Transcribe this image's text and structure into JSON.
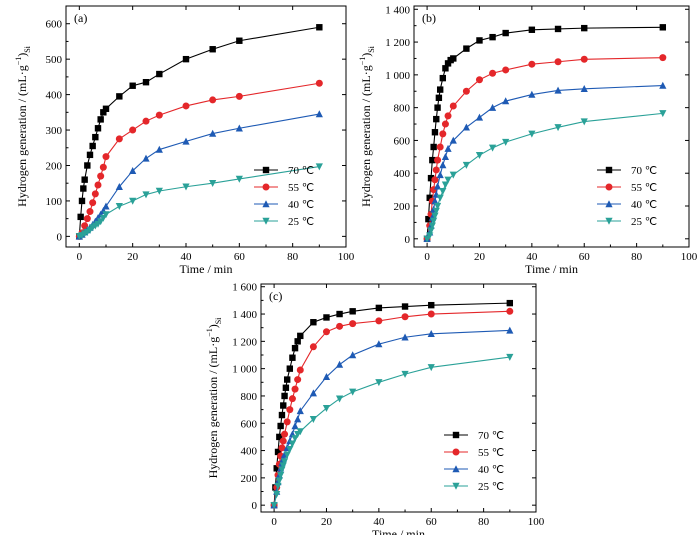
{
  "chart_data": [
    {
      "type": "line",
      "panel_label": "(a)",
      "xlabel": "Time / min",
      "ylabel_main": "Hydrogen generation / (mL·g",
      "ylabel_sup": "−1",
      "ylabel_close": ")",
      "ylabel_sub": "Si",
      "xlim": [
        -5,
        100
      ],
      "ylim": [
        -30,
        650
      ],
      "xticks": [
        0,
        20,
        40,
        60,
        80,
        100
      ],
      "yticks": [
        0,
        100,
        200,
        300,
        400,
        500,
        600
      ],
      "ytick_labels": [
        "0",
        "100",
        "200",
        "300",
        "400",
        "500",
        "600"
      ],
      "legend_position": "lower-right",
      "series": [
        {
          "name": "70 ℃",
          "color": "#000000",
          "marker": "square",
          "x": [
            0,
            0.5,
            1,
            1.5,
            2,
            3,
            4,
            5,
            6,
            7,
            8,
            9,
            10,
            15,
            20,
            25,
            30,
            40,
            50,
            60,
            90
          ],
          "y": [
            0,
            55,
            100,
            135,
            160,
            200,
            230,
            255,
            280,
            305,
            330,
            350,
            360,
            395,
            425,
            435,
            458,
            500,
            528,
            552,
            590
          ]
        },
        {
          "name": "55 ℃",
          "color": "#e4272a",
          "marker": "circle",
          "x": [
            0,
            1,
            2,
            3,
            4,
            5,
            6,
            7,
            8,
            9,
            10,
            15,
            20,
            25,
            30,
            40,
            50,
            60,
            90
          ],
          "y": [
            0,
            10,
            30,
            50,
            70,
            95,
            120,
            145,
            170,
            195,
            225,
            275,
            300,
            325,
            342,
            368,
            385,
            395,
            432
          ]
        },
        {
          "name": "40 ℃",
          "color": "#1e5ab4",
          "marker": "triangle-up",
          "x": [
            0,
            1,
            2,
            3,
            4,
            5,
            6,
            7,
            8,
            9,
            10,
            15,
            20,
            25,
            30,
            40,
            50,
            60,
            90
          ],
          "y": [
            0,
            5,
            12,
            18,
            25,
            33,
            42,
            52,
            62,
            72,
            85,
            140,
            185,
            220,
            245,
            268,
            290,
            305,
            345
          ]
        },
        {
          "name": "25 ℃",
          "color": "#2aa198",
          "marker": "triangle-down",
          "x": [
            0,
            1,
            2,
            3,
            4,
            5,
            6,
            7,
            8,
            9,
            10,
            15,
            20,
            25,
            30,
            40,
            50,
            60,
            90
          ],
          "y": [
            0,
            3,
            8,
            12,
            18,
            25,
            30,
            35,
            42,
            52,
            62,
            85,
            100,
            118,
            128,
            140,
            150,
            162,
            197
          ]
        }
      ]
    },
    {
      "type": "line",
      "panel_label": "(b)",
      "xlabel": "Time / min",
      "ylabel_main": "Hydrogen generation / (mL·g",
      "ylabel_sup": "−1",
      "ylabel_close": ")",
      "ylabel_sub": "Si",
      "xlim": [
        -5,
        100
      ],
      "ylim": [
        -50,
        1420
      ],
      "xticks": [
        0,
        20,
        40,
        60,
        80,
        100
      ],
      "yticks": [
        0,
        200,
        400,
        600,
        800,
        1000,
        1200,
        1400
      ],
      "ytick_labels": [
        "0",
        "200",
        "400",
        "600",
        "800",
        "1 000",
        "1 200",
        "1 400"
      ],
      "legend_position": "lower-right",
      "series": [
        {
          "name": "70 ℃",
          "color": "#000000",
          "marker": "square",
          "x": [
            0,
            0.5,
            1,
            1.5,
            2,
            2.5,
            3,
            3.5,
            4,
            4.5,
            5,
            6,
            7,
            8,
            9,
            10,
            15,
            20,
            25,
            30,
            40,
            50,
            60,
            90
          ],
          "y": [
            0,
            120,
            250,
            370,
            480,
            560,
            650,
            730,
            800,
            860,
            910,
            980,
            1040,
            1070,
            1090,
            1100,
            1160,
            1210,
            1230,
            1255,
            1275,
            1280,
            1285,
            1290
          ]
        },
        {
          "name": "55 ℃",
          "color": "#e4272a",
          "marker": "circle",
          "x": [
            0,
            1,
            1.5,
            2,
            2.5,
            3,
            3.5,
            4,
            5,
            6,
            7,
            8,
            10,
            15,
            20,
            25,
            30,
            40,
            50,
            60,
            90
          ],
          "y": [
            0,
            80,
            150,
            230,
            300,
            360,
            420,
            480,
            560,
            640,
            700,
            750,
            810,
            900,
            970,
            1010,
            1030,
            1065,
            1080,
            1095,
            1105
          ]
        },
        {
          "name": "40 ℃",
          "color": "#1e5ab4",
          "marker": "triangle-up",
          "x": [
            0,
            1,
            1.5,
            2,
            2.5,
            3,
            3.5,
            4,
            5,
            6,
            7,
            8,
            10,
            15,
            20,
            25,
            30,
            40,
            50,
            60,
            90
          ],
          "y": [
            0,
            40,
            80,
            130,
            180,
            230,
            270,
            320,
            390,
            450,
            500,
            550,
            600,
            680,
            740,
            800,
            840,
            880,
            905,
            915,
            935
          ]
        },
        {
          "name": "25 ℃",
          "color": "#2aa198",
          "marker": "triangle-down",
          "x": [
            0,
            1,
            1.5,
            2,
            2.5,
            3,
            3.5,
            4,
            5,
            6,
            7,
            8,
            10,
            15,
            20,
            25,
            30,
            40,
            50,
            60,
            90
          ],
          "y": [
            0,
            20,
            50,
            80,
            110,
            140,
            170,
            200,
            250,
            290,
            330,
            360,
            390,
            450,
            510,
            555,
            590,
            640,
            680,
            715,
            765
          ]
        }
      ]
    },
    {
      "type": "line",
      "panel_label": "(c)",
      "xlabel": "Time / min",
      "ylabel_main": "Hydrogen generation / (mL·g",
      "ylabel_sup": "−1",
      "ylabel_close": ")",
      "ylabel_sub": "Si",
      "xlim": [
        -5,
        100
      ],
      "ylim": [
        -50,
        1620
      ],
      "xticks": [
        0,
        20,
        40,
        60,
        80,
        100
      ],
      "yticks": [
        0,
        200,
        400,
        600,
        800,
        1000,
        1200,
        1400,
        1600
      ],
      "ytick_labels": [
        "0",
        "200",
        "400",
        "600",
        "800",
        "1 000",
        "1 200",
        "1 400",
        "1 600"
      ],
      "legend_position": "lower-right",
      "series": [
        {
          "name": "70 ℃",
          "color": "#000000",
          "marker": "square",
          "x": [
            0,
            0.5,
            1,
            1.5,
            2,
            2.5,
            3,
            3.5,
            4,
            4.5,
            5,
            6,
            7,
            8,
            9,
            10,
            15,
            20,
            25,
            30,
            40,
            50,
            60,
            90
          ],
          "y": [
            0,
            130,
            270,
            390,
            500,
            580,
            660,
            730,
            800,
            860,
            920,
            1000,
            1080,
            1150,
            1200,
            1240,
            1340,
            1375,
            1400,
            1420,
            1445,
            1455,
            1465,
            1480
          ]
        },
        {
          "name": "55 ℃",
          "color": "#e4272a",
          "marker": "circle",
          "x": [
            0,
            1,
            1.5,
            2,
            2.5,
            3,
            3.5,
            4,
            5,
            6,
            7,
            8,
            9,
            10,
            15,
            20,
            25,
            30,
            40,
            50,
            60,
            90
          ],
          "y": [
            0,
            130,
            220,
            300,
            360,
            420,
            470,
            520,
            610,
            700,
            780,
            850,
            920,
            990,
            1160,
            1270,
            1310,
            1330,
            1350,
            1380,
            1400,
            1420
          ]
        },
        {
          "name": "40 ℃",
          "color": "#1e5ab4",
          "marker": "triangle-up",
          "x": [
            0,
            1,
            1.5,
            2,
            2.5,
            3,
            3.5,
            4,
            5,
            6,
            7,
            8,
            9,
            10,
            15,
            20,
            25,
            30,
            40,
            50,
            60,
            90
          ],
          "y": [
            0,
            100,
            170,
            220,
            270,
            310,
            340,
            370,
            420,
            470,
            520,
            580,
            630,
            690,
            820,
            940,
            1030,
            1100,
            1180,
            1230,
            1255,
            1280
          ]
        },
        {
          "name": "25 ℃",
          "color": "#2aa198",
          "marker": "triangle-down",
          "x": [
            0,
            1,
            1.5,
            2,
            2.5,
            3,
            3.5,
            4,
            5,
            6,
            7,
            8,
            9,
            10,
            15,
            20,
            25,
            30,
            40,
            50,
            60,
            90
          ],
          "y": [
            0,
            80,
            140,
            180,
            220,
            260,
            290,
            320,
            370,
            410,
            450,
            490,
            520,
            540,
            630,
            710,
            780,
            830,
            900,
            960,
            1010,
            1085
          ]
        }
      ]
    }
  ]
}
